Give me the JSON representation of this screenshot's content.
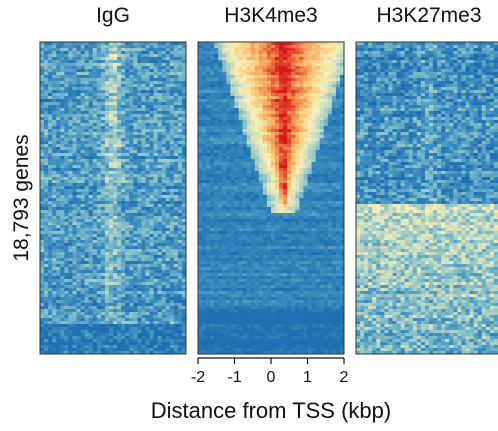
{
  "chart_data": {
    "type": "heatmap",
    "panels": [
      {
        "title": "IgG",
        "pattern": "igg"
      },
      {
        "title": "H3K4me3",
        "pattern": "h3k4me3"
      },
      {
        "title": "H3K27me3",
        "pattern": "h3k27me3"
      }
    ],
    "ylabel": "18,793 genes",
    "xlabel": "Distance from TSS (kbp)",
    "x_ticks": [
      "-2",
      "-1",
      "0",
      "1",
      "2"
    ],
    "xlim": [
      -2,
      2
    ],
    "rows": 18793,
    "colorscale": [
      "#1f6fb2",
      "#3d8fc0",
      "#7fbcc8",
      "#c8dcc0",
      "#f7efb7",
      "#fbc97a",
      "#f08a4b",
      "#d7191c"
    ]
  }
}
